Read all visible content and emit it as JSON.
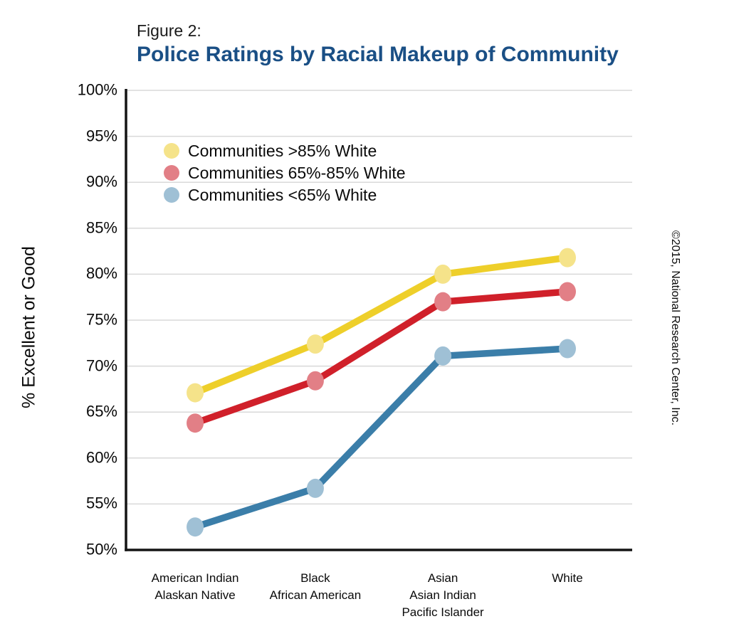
{
  "header": {
    "figure_label": "Figure 2:",
    "title": "Police Ratings by Racial Makeup of Community",
    "title_color": "#1a4f85"
  },
  "copyright": "©2015, National Research Center, Inc.",
  "y_axis": {
    "tick_labels": [
      "100%",
      "95%",
      "90%",
      "85%",
      "80%",
      "75%",
      "70%",
      "65%",
      "60%",
      "55%",
      "50%"
    ]
  },
  "chart_data": {
    "type": "line",
    "title": "Police Ratings by Racial Makeup of Community",
    "xlabel": "",
    "ylabel": "% Excellent or Good",
    "ylim": [
      50,
      100
    ],
    "ytick_step": 5,
    "grid": true,
    "legend_position": "upper-left-inside",
    "categories": [
      [
        "American Indian",
        "Alaskan Native"
      ],
      [
        "Black",
        "African American"
      ],
      [
        "Asian",
        "Asian Indian",
        "Pacific Islander"
      ],
      [
        "White"
      ]
    ],
    "series": [
      {
        "name": "Communities >85% White",
        "values": [
          67.1,
          72.4,
          80.0,
          81.8
        ],
        "line_color": "#eecf2a",
        "marker_color": "#f5e38a"
      },
      {
        "name": "Communities 65%-85% White",
        "values": [
          63.8,
          68.4,
          77.0,
          78.1
        ],
        "line_color": "#d0202a",
        "marker_color": "#e27f86"
      },
      {
        "name": "Communities <65% White",
        "values": [
          52.5,
          56.7,
          71.1,
          71.9
        ],
        "line_color": "#3b7ea9",
        "marker_color": "#9fc0d5"
      }
    ],
    "gridline_color": "#d9d9d9",
    "axis_color": "#141414"
  }
}
